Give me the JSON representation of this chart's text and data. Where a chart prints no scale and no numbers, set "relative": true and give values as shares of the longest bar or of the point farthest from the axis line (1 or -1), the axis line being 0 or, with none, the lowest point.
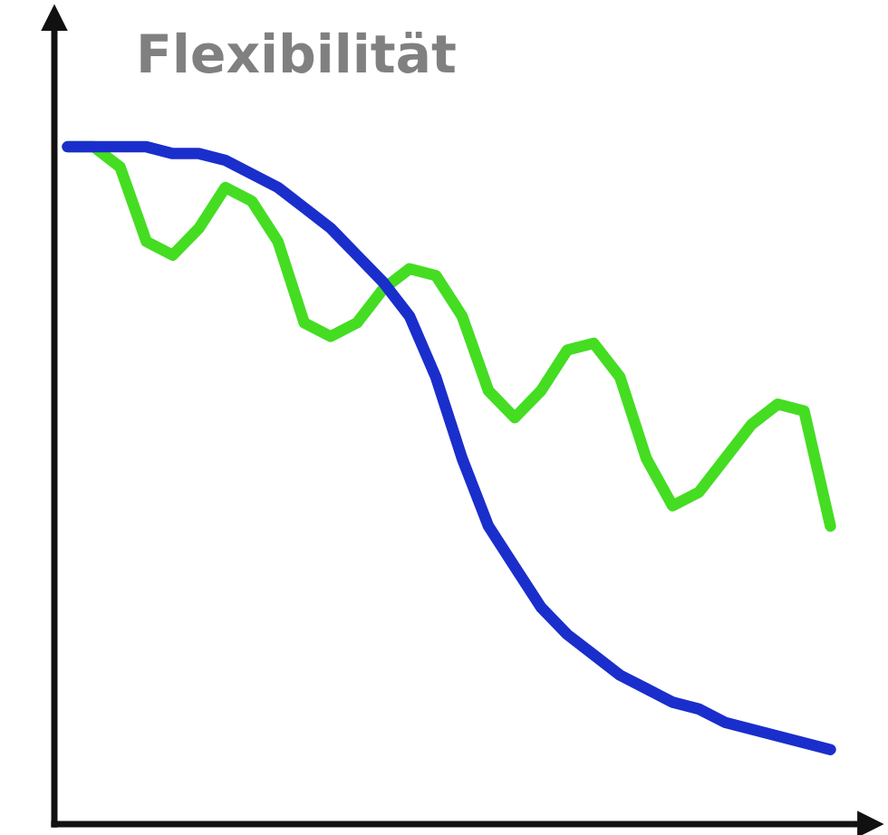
{
  "chart_data": {
    "type": "line",
    "title": "Flexibilität",
    "relative": true,
    "grid": false,
    "legend": false,
    "marker": "none",
    "line_style": "solid",
    "categories": [
      null,
      null,
      null,
      null,
      null,
      null,
      null,
      null,
      null,
      null,
      null,
      null,
      null,
      null,
      null,
      null,
      null,
      null,
      null,
      null,
      null,
      null,
      null,
      null,
      null,
      null,
      null,
      null,
      null,
      null
    ],
    "series": [
      {
        "color": "#44dd22",
        "values": [
          1.0,
          1.0,
          0.97,
          0.86,
          0.84,
          0.88,
          0.94,
          0.92,
          0.86,
          0.74,
          0.72,
          0.74,
          0.79,
          0.82,
          0.81,
          0.75,
          0.64,
          0.6,
          0.64,
          0.7,
          0.71,
          0.66,
          0.54,
          0.47,
          0.49,
          0.54,
          0.59,
          0.62,
          0.61,
          0.44
        ]
      },
      {
        "color": "#1a2ecc",
        "values": [
          1.0,
          1.0,
          1.0,
          1.0,
          0.99,
          0.99,
          0.98,
          0.96,
          0.94,
          0.91,
          0.88,
          0.84,
          0.8,
          0.75,
          0.66,
          0.54,
          0.44,
          0.38,
          0.32,
          0.28,
          0.25,
          0.22,
          0.2,
          0.18,
          0.17,
          0.15,
          0.14,
          0.13,
          0.12,
          0.11
        ]
      }
    ]
  }
}
